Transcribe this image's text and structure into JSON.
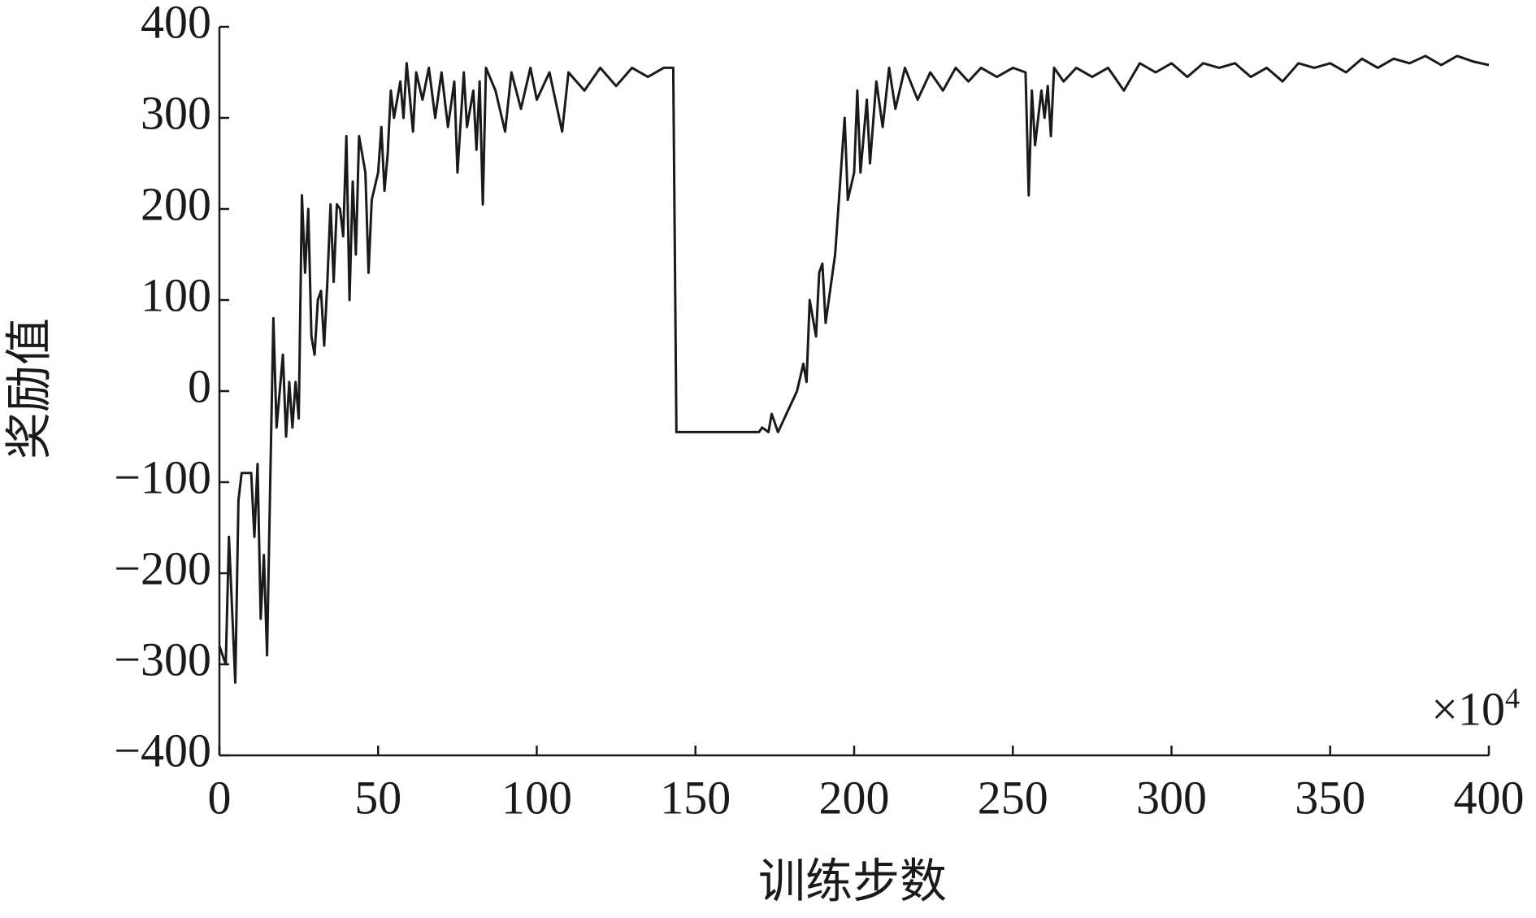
{
  "chart_data": {
    "type": "line",
    "x_label": "训练步数",
    "y_label": "奖励值",
    "x_multiplier": "×10",
    "x_multiplier_exp": "4",
    "color": "#1a1a1a",
    "grid": false,
    "xlim": [
      0,
      400
    ],
    "ylim": [
      -400,
      400
    ],
    "xticks": [
      0,
      50,
      100,
      150,
      200,
      250,
      300,
      350,
      400
    ],
    "yticks": [
      {
        "value": -400,
        "label": "−400"
      },
      {
        "value": -300,
        "label": "−300"
      },
      {
        "value": -200,
        "label": "−200"
      },
      {
        "value": -100,
        "label": "−100"
      },
      0,
      100,
      200,
      300,
      400
    ],
    "x": [
      0,
      2,
      3,
      5,
      6,
      7,
      10,
      11,
      12,
      13,
      14,
      15,
      16,
      17,
      18,
      20,
      21,
      22,
      23,
      24,
      25,
      26,
      27,
      28,
      29,
      30,
      31,
      32,
      33,
      34,
      35,
      36,
      37,
      38,
      39,
      40,
      41,
      42,
      43,
      44,
      46,
      47,
      48,
      50,
      51,
      52,
      53,
      54,
      55,
      57,
      58,
      59,
      61,
      62,
      64,
      66,
      68,
      70,
      72,
      74,
      75,
      77,
      78,
      80,
      81,
      82,
      83,
      84,
      87,
      90,
      92,
      95,
      98,
      100,
      104,
      108,
      110,
      115,
      120,
      125,
      130,
      135,
      140,
      143,
      144,
      150,
      170,
      171,
      173,
      174,
      176,
      178,
      182,
      184,
      185,
      186,
      188,
      189,
      190,
      191,
      194,
      196,
      197,
      198,
      200,
      201,
      202,
      204,
      205,
      207,
      209,
      211,
      213,
      216,
      220,
      224,
      228,
      232,
      236,
      240,
      245,
      250,
      254,
      255,
      256,
      257,
      259,
      260,
      261,
      262,
      263,
      266,
      270,
      275,
      280,
      285,
      290,
      295,
      300,
      305,
      310,
      315,
      320,
      325,
      330,
      335,
      340,
      345,
      350,
      355,
      360,
      365,
      370,
      375,
      380,
      385,
      390,
      395,
      400
    ],
    "values": [
      -280,
      -300,
      -160,
      -320,
      -120,
      -90,
      -90,
      -160,
      -80,
      -250,
      -180,
      -290,
      -100,
      80,
      -40,
      40,
      -50,
      10,
      -40,
      10,
      -30,
      215,
      130,
      200,
      60,
      40,
      100,
      110,
      50,
      120,
      205,
      120,
      205,
      200,
      170,
      280,
      100,
      230,
      150,
      280,
      240,
      130,
      210,
      240,
      290,
      220,
      260,
      330,
      300,
      340,
      300,
      360,
      285,
      350,
      320,
      355,
      300,
      350,
      290,
      340,
      240,
      350,
      290,
      330,
      265,
      340,
      205,
      355,
      330,
      285,
      350,
      310,
      355,
      320,
      350,
      285,
      350,
      330,
      355,
      335,
      355,
      345,
      355,
      355,
      -45,
      -45,
      -45,
      -40,
      -45,
      -25,
      -45,
      -30,
      0,
      30,
      10,
      100,
      60,
      130,
      140,
      75,
      150,
      250,
      300,
      210,
      240,
      330,
      240,
      320,
      250,
      340,
      290,
      355,
      310,
      355,
      320,
      350,
      330,
      355,
      340,
      355,
      345,
      355,
      350,
      215,
      330,
      270,
      330,
      300,
      335,
      280,
      355,
      340,
      355,
      345,
      355,
      330,
      360,
      350,
      360,
      345,
      360,
      355,
      360,
      345,
      355,
      340,
      360,
      355,
      360,
      350,
      365,
      355,
      365,
      360,
      368,
      358,
      368,
      362,
      358
    ]
  }
}
